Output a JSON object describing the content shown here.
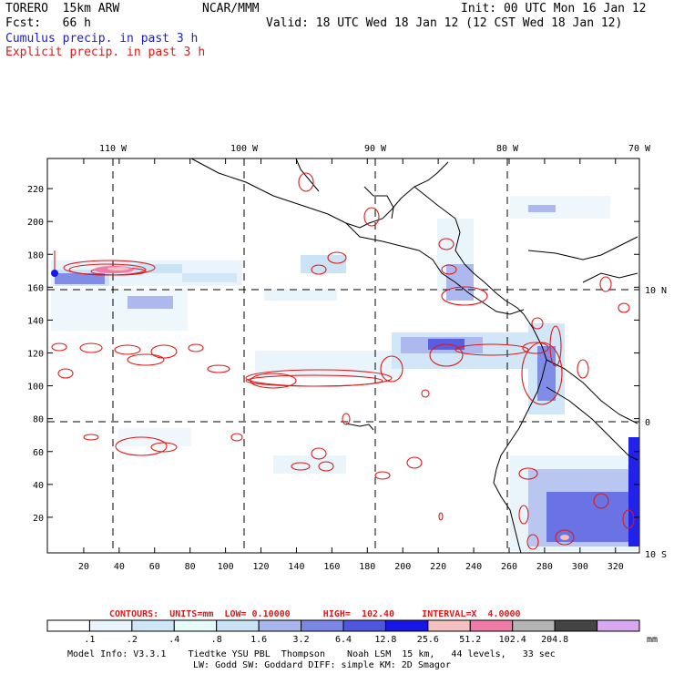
{
  "header": {
    "model": "TORERO  15km ARW",
    "org": "NCAR/MMM",
    "init": "Init: 00 UTC Mon 16 Jan 12",
    "fcst": "Fcst:   66 h",
    "valid": "Valid: 18 UTC Wed 18 Jan 12 (12 CST Wed 18 Jan 12)",
    "line_cumulus": "Cumulus precip. in past 3 h",
    "line_explicit": "Explicit precip. in past 3 h"
  },
  "map": {
    "top_lon_labels": [
      "110 W",
      "100 W",
      "90 W",
      "80 W",
      "70 W"
    ],
    "right_lat_labels": [
      "10 N",
      "0",
      "10 S"
    ],
    "y_tick_labels": [
      "220",
      "200",
      "180",
      "160",
      "140",
      "120",
      "100",
      "80",
      "60",
      "40",
      "20"
    ],
    "x_tick_labels": [
      "20",
      "40",
      "60",
      "80",
      "100",
      "120",
      "140",
      "160",
      "180",
      "200",
      "220",
      "240",
      "260",
      "280",
      "300",
      "320"
    ]
  },
  "contour_info": {
    "label": "CONTOURS:  UNITS=mm  LOW= 0.10000      HIGH=  102.40     INTERVAL=X  4.0000"
  },
  "colorbar": {
    "labels": [
      ".1",
      ".2",
      ".4",
      ".8",
      "1.6",
      "3.2",
      "6.4",
      "12.8",
      "25.6",
      "51.2",
      "102.4",
      "204.8"
    ],
    "unit": "mm",
    "colors": [
      "#ffffff",
      "#e8f4fb",
      "#cfe6f7",
      "#e6fafa",
      "#c9e3f5",
      "#a9b6ee",
      "#7b86e6",
      "#4f56e0",
      "#1717e8",
      "#f5c0c0",
      "#f07aa8",
      "#b4b4b4",
      "#444444",
      "#d8a8f0"
    ]
  },
  "footer": {
    "line1": "Model Info: V3.3.1    Tiedtke YSU PBL  Thompson    Noah LSM  15 km,   44 levels,   33 sec",
    "line2": "LW: Godd SW: Goddard DIFF: simple KM: 2D Smagor"
  }
}
